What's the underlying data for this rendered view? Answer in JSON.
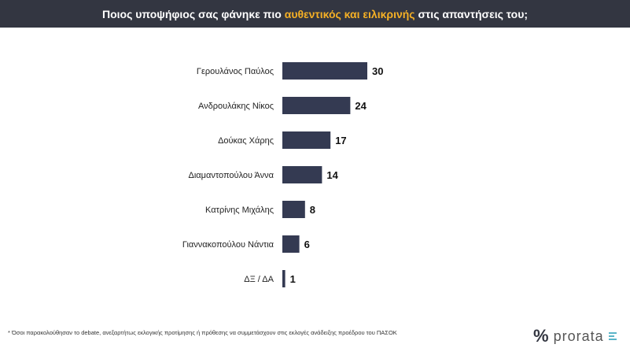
{
  "header": {
    "title_before": "Ποιος υποψήφιος σας φάνηκε πιο ",
    "title_highlight": "αυθεντικός και ειλικρινής",
    "title_after": " στις απαντήσεις του;"
  },
  "colors": {
    "header_bg": "#333641",
    "highlight": "#f5b025",
    "bar": "#343a52"
  },
  "chart_data": {
    "type": "bar",
    "orientation": "horizontal",
    "categories": [
      "Γερουλάνος Παύλος",
      "Ανδρουλάκης Νίκος",
      "Δούκας Χάρης",
      "Διαμαντοπούλου Άννα",
      "Κατρίνης Μιχάλης",
      "Γιαννακοπούλου Νάντια",
      "ΔΞ / ΔΑ"
    ],
    "values": [
      30,
      24,
      17,
      14,
      8,
      6,
      1
    ],
    "xlim": [
      0,
      30
    ],
    "grid": false,
    "legend": "none"
  },
  "footer": {
    "note": "* Όσοι παρακολούθησαν το debate, ανεξαρτήτως εκλογικής προτίμησης ή πρόθεσης να συμμετάσχουν στις εκλογές ανάδειξης προέδρου του ΠΑΣΟΚ",
    "logo_symbol": "%",
    "logo_text": "prorata"
  }
}
